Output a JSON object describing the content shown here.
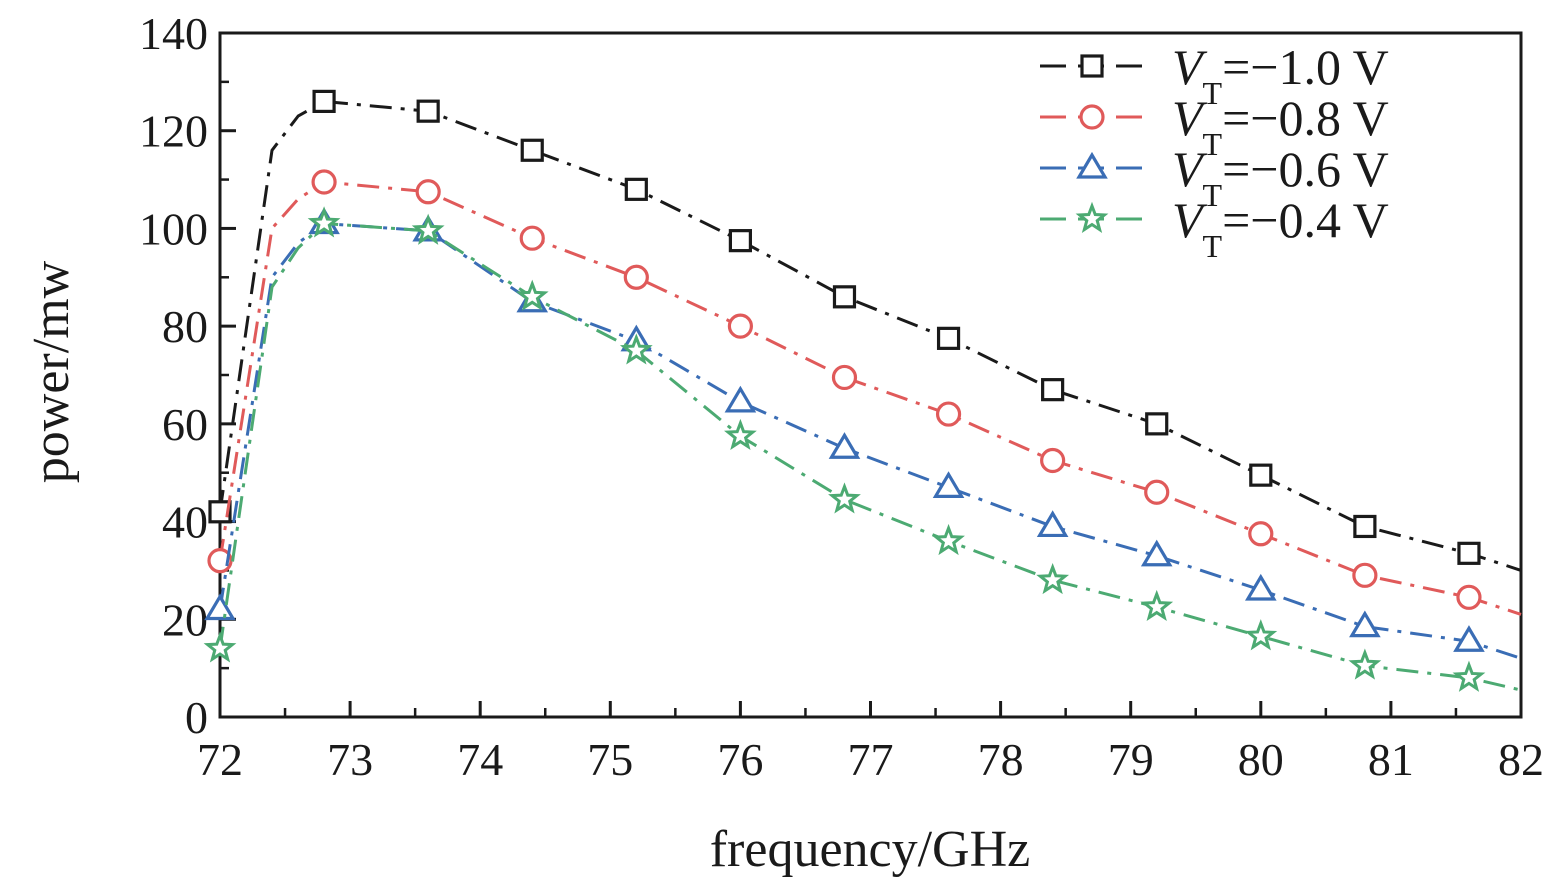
{
  "chart_data": {
    "type": "line",
    "title": "",
    "xlabel": "frequency/GHz",
    "ylabel": "power/mw",
    "xlim": [
      72,
      82
    ],
    "ylim": [
      0,
      140
    ],
    "xticks": [
      "72",
      "73",
      "74",
      "75",
      "76",
      "77",
      "78",
      "79",
      "80",
      "81",
      "82"
    ],
    "yticks": [
      "0",
      "20",
      "40",
      "60",
      "80",
      "100",
      "120",
      "140"
    ],
    "grid": false,
    "legend_position": "top-right",
    "x": [
      72.0,
      72.8,
      73.6,
      74.4,
      75.2,
      76.0,
      76.8,
      77.6,
      78.4,
      79.2,
      80.0,
      80.8,
      81.6
    ],
    "series": [
      {
        "name": "V_T=−1.0 V",
        "label_main": "V",
        "label_sub": "T",
        "label_rest": "=−1.0 V",
        "marker": "square",
        "color": "#1a1a1a",
        "values": [
          42,
          126,
          124,
          116,
          108,
          97.5,
          86,
          77.5,
          67,
          60,
          49.5,
          39,
          33.5
        ],
        "tail": [
          [
            72.4,
            116
          ],
          [
            72.6,
            123
          ],
          [
            82.0,
            30
          ]
        ]
      },
      {
        "name": "V_T=−0.8 V",
        "label_main": "V",
        "label_sub": "T",
        "label_rest": "=−0.8 V",
        "marker": "circle",
        "color": "#e05a5a",
        "values": [
          32,
          109.5,
          107.5,
          98,
          90,
          80,
          69.5,
          62,
          52.5,
          46,
          37.5,
          29,
          24.5
        ],
        "tail": [
          [
            72.4,
            100
          ],
          [
            72.6,
            106
          ],
          [
            82.0,
            21
          ]
        ]
      },
      {
        "name": "V_T=−0.6 V",
        "label_main": "V",
        "label_sub": "T",
        "label_rest": "=−0.6 V",
        "marker": "triangle",
        "color": "#3a6db5",
        "values": [
          22,
          101,
          99.5,
          85,
          77,
          64.5,
          55,
          47,
          39,
          33,
          26,
          18.5,
          15.5
        ],
        "tail": [
          [
            72.4,
            90
          ],
          [
            72.6,
            97
          ],
          [
            82.0,
            12
          ]
        ]
      },
      {
        "name": "V_T=−0.4 V",
        "label_main": "V",
        "label_sub": "T",
        "label_rest": "=−0.4 V",
        "marker": "star",
        "color": "#4caa72",
        "values": [
          14,
          101,
          99.5,
          86,
          75,
          57.5,
          44.5,
          36,
          28,
          22.5,
          16.5,
          10.5,
          8
        ],
        "tail": [
          [
            72.4,
            88
          ],
          [
            72.6,
            96
          ],
          [
            82.0,
            5.5
          ]
        ]
      }
    ]
  }
}
